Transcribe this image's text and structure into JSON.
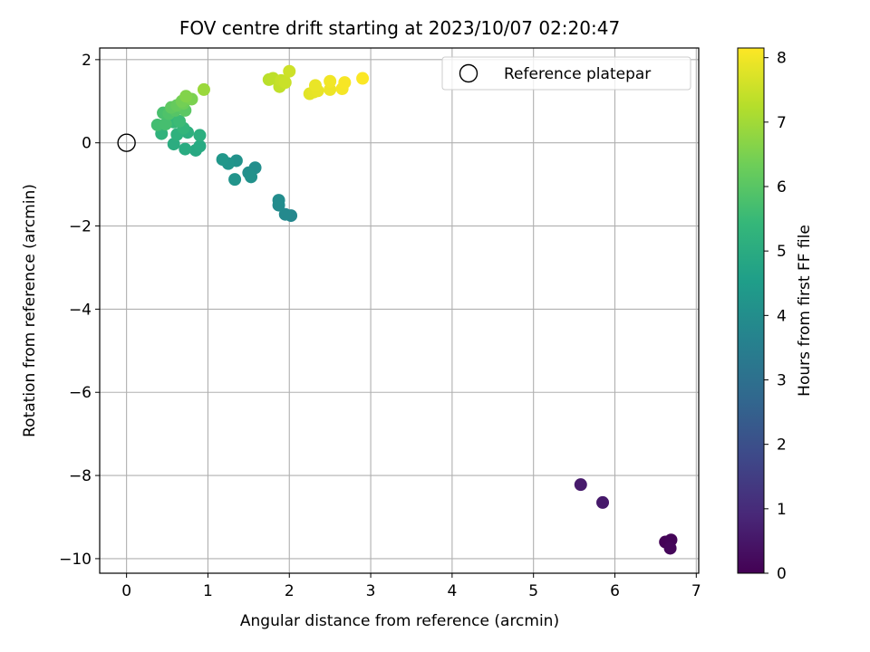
{
  "chart_data": {
    "type": "scatter",
    "title": "FOV centre drift starting at 2023/10/07 02:20:47",
    "xlabel": "Angular distance from reference (arcmin)",
    "ylabel": "Rotation from reference (arcmin)",
    "xlim": [
      -0.33,
      7.03
    ],
    "ylim": [
      -10.35,
      2.28
    ],
    "xticks": [
      0,
      1,
      2,
      3,
      4,
      5,
      6,
      7
    ],
    "yticks": [
      -10,
      -8,
      -6,
      -4,
      -2,
      0,
      2
    ],
    "grid": true,
    "legend": {
      "placement": "top-right",
      "entries": [
        "Reference platepar"
      ]
    },
    "reference_point": {
      "name": "Reference platepar",
      "x": 0,
      "y": 0,
      "marker": "open-circle",
      "color": "#000000"
    },
    "colorbar": {
      "label": "Hours from first FF file",
      "min": 0,
      "max": 8.15,
      "ticks": [
        0,
        1,
        2,
        3,
        4,
        5,
        6,
        7,
        8
      ],
      "colormap": "viridis",
      "colors": [
        "#440154",
        "#482878",
        "#3e4989",
        "#31688e",
        "#26828e",
        "#1f9e89",
        "#35b779",
        "#6ece58",
        "#b5de2b",
        "#fde725"
      ]
    },
    "points": [
      {
        "x": 6.62,
        "y": -9.6,
        "t": 0.05
      },
      {
        "x": 6.69,
        "y": -9.55,
        "t": 0.1
      },
      {
        "x": 6.68,
        "y": -9.75,
        "t": 0.15
      },
      {
        "x": 5.85,
        "y": -8.65,
        "t": 0.55
      },
      {
        "x": 5.58,
        "y": -8.22,
        "t": 0.6
      },
      {
        "x": 2.02,
        "y": -1.75,
        "t": 3.8
      },
      {
        "x": 1.95,
        "y": -1.72,
        "t": 3.85
      },
      {
        "x": 1.87,
        "y": -1.5,
        "t": 3.9
      },
      {
        "x": 1.87,
        "y": -1.38,
        "t": 3.95
      },
      {
        "x": 1.58,
        "y": -0.6,
        "t": 4.0
      },
      {
        "x": 1.5,
        "y": -0.72,
        "t": 4.05
      },
      {
        "x": 1.53,
        "y": -0.82,
        "t": 4.1
      },
      {
        "x": 1.35,
        "y": -0.43,
        "t": 4.15
      },
      {
        "x": 1.33,
        "y": -0.88,
        "t": 4.2
      },
      {
        "x": 1.25,
        "y": -0.5,
        "t": 4.25
      },
      {
        "x": 1.18,
        "y": -0.4,
        "t": 4.3
      },
      {
        "x": 0.85,
        "y": -0.18,
        "t": 4.9
      },
      {
        "x": 0.9,
        "y": -0.08,
        "t": 4.95
      },
      {
        "x": 0.72,
        "y": -0.15,
        "t": 5.0
      },
      {
        "x": 0.58,
        "y": -0.03,
        "t": 5.05
      },
      {
        "x": 0.9,
        "y": 0.18,
        "t": 5.1
      },
      {
        "x": 0.75,
        "y": 0.25,
        "t": 5.15
      },
      {
        "x": 0.62,
        "y": 0.2,
        "t": 5.2
      },
      {
        "x": 0.43,
        "y": 0.22,
        "t": 5.25
      },
      {
        "x": 0.7,
        "y": 0.35,
        "t": 5.35
      },
      {
        "x": 0.58,
        "y": 0.5,
        "t": 5.45
      },
      {
        "x": 0.65,
        "y": 0.52,
        "t": 5.55
      },
      {
        "x": 0.38,
        "y": 0.43,
        "t": 5.65
      },
      {
        "x": 0.48,
        "y": 0.45,
        "t": 5.7
      },
      {
        "x": 0.45,
        "y": 0.72,
        "t": 5.75
      },
      {
        "x": 0.52,
        "y": 0.7,
        "t": 5.85
      },
      {
        "x": 0.6,
        "y": 0.78,
        "t": 5.95
      },
      {
        "x": 0.72,
        "y": 0.78,
        "t": 6.05
      },
      {
        "x": 0.55,
        "y": 0.85,
        "t": 6.1
      },
      {
        "x": 0.62,
        "y": 0.9,
        "t": 6.2
      },
      {
        "x": 0.7,
        "y": 0.95,
        "t": 6.3
      },
      {
        "x": 0.68,
        "y": 1.0,
        "t": 6.4
      },
      {
        "x": 0.8,
        "y": 1.05,
        "t": 6.5
      },
      {
        "x": 0.73,
        "y": 1.12,
        "t": 6.6
      },
      {
        "x": 0.95,
        "y": 1.28,
        "t": 6.9
      },
      {
        "x": 1.75,
        "y": 1.52,
        "t": 7.3
      },
      {
        "x": 1.8,
        "y": 1.55,
        "t": 7.35
      },
      {
        "x": 1.88,
        "y": 1.35,
        "t": 7.4
      },
      {
        "x": 1.9,
        "y": 1.5,
        "t": 7.45
      },
      {
        "x": 1.95,
        "y": 1.45,
        "t": 7.5
      },
      {
        "x": 2.0,
        "y": 1.72,
        "t": 7.55
      },
      {
        "x": 2.25,
        "y": 1.18,
        "t": 7.8
      },
      {
        "x": 2.3,
        "y": 1.22,
        "t": 7.85
      },
      {
        "x": 2.35,
        "y": 1.25,
        "t": 7.88
      },
      {
        "x": 2.32,
        "y": 1.38,
        "t": 7.9
      },
      {
        "x": 2.5,
        "y": 1.28,
        "t": 7.95
      },
      {
        "x": 2.5,
        "y": 1.48,
        "t": 8.0
      },
      {
        "x": 2.65,
        "y": 1.3,
        "t": 8.05
      },
      {
        "x": 2.68,
        "y": 1.45,
        "t": 8.08
      },
      {
        "x": 2.9,
        "y": 1.55,
        "t": 8.12
      }
    ]
  }
}
